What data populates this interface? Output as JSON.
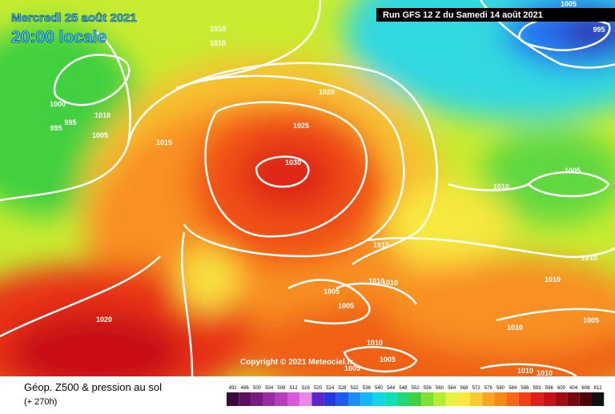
{
  "header": {
    "date": "Mercredi 25 août 2021",
    "time": "20:00 locale",
    "run": "Run GFS 12 Z du Samedi 14 août 2021"
  },
  "isobar_labels": [
    1005,
    995,
    1010,
    1010,
    1020,
    1000,
    1010,
    995,
    995,
    1005,
    1025,
    1015,
    1030,
    1005,
    1010,
    1015,
    1010,
    1010,
    1010,
    1010,
    1005,
    1005,
    1020,
    1005,
    1010,
    1010,
    1005,
    1005,
    1010,
    1010
  ],
  "copyright": "Copyright © 2021 Meteociel.fr",
  "legend": {
    "title": "Géop. Z500 & pression au sol",
    "subtitle": "(+ 270h)",
    "labels": [
      492,
      496,
      500,
      504,
      508,
      512,
      516,
      520,
      524,
      528,
      532,
      536,
      540,
      544,
      548,
      552,
      556,
      560,
      564,
      568,
      572,
      576,
      580,
      584,
      588,
      592,
      596,
      600,
      604,
      608,
      612
    ],
    "colors": [
      "#3a0a3a",
      "#5c0f5c",
      "#7a1a80",
      "#9a2aa0",
      "#b83cc0",
      "#d85ad8",
      "#e888e8",
      "#5a28c8",
      "#2838e0",
      "#1c5cf0",
      "#1e8cf8",
      "#10b8f8",
      "#10d8e8",
      "#10e0b8",
      "#20d878",
      "#40d040",
      "#80e030",
      "#b8ec30",
      "#e8f040",
      "#f8e840",
      "#f8cc30",
      "#f8a820",
      "#f88818",
      "#f86818",
      "#f04018",
      "#e02018",
      "#c81018",
      "#a00c14",
      "#780810",
      "#500408",
      "#101010"
    ]
  }
}
